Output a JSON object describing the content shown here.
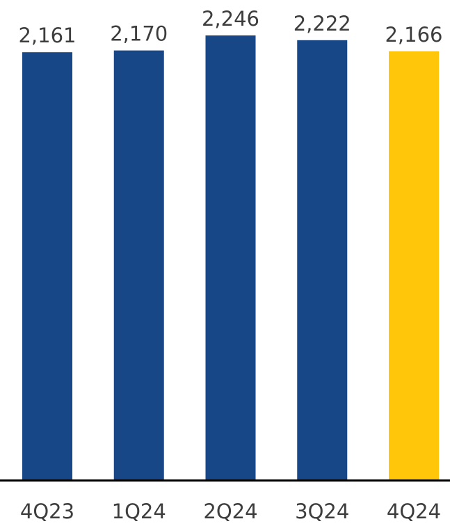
{
  "chart_data": {
    "type": "bar",
    "categories": [
      "4Q23",
      "1Q24",
      "2Q24",
      "3Q24",
      "4Q24"
    ],
    "values": [
      2161,
      2170,
      2246,
      2222,
      2166
    ],
    "value_labels": [
      "2,161",
      "2,170",
      "2,246",
      "2,222",
      "2,166"
    ],
    "bar_colors": [
      "#174787",
      "#174787",
      "#174787",
      "#174787",
      "#FFC60A"
    ],
    "axis_color": "#000000",
    "label_color": "#3d3d3d",
    "ylim": [
      0,
      2246
    ],
    "grid": false,
    "title": "",
    "xlabel": "",
    "ylabel": ""
  }
}
